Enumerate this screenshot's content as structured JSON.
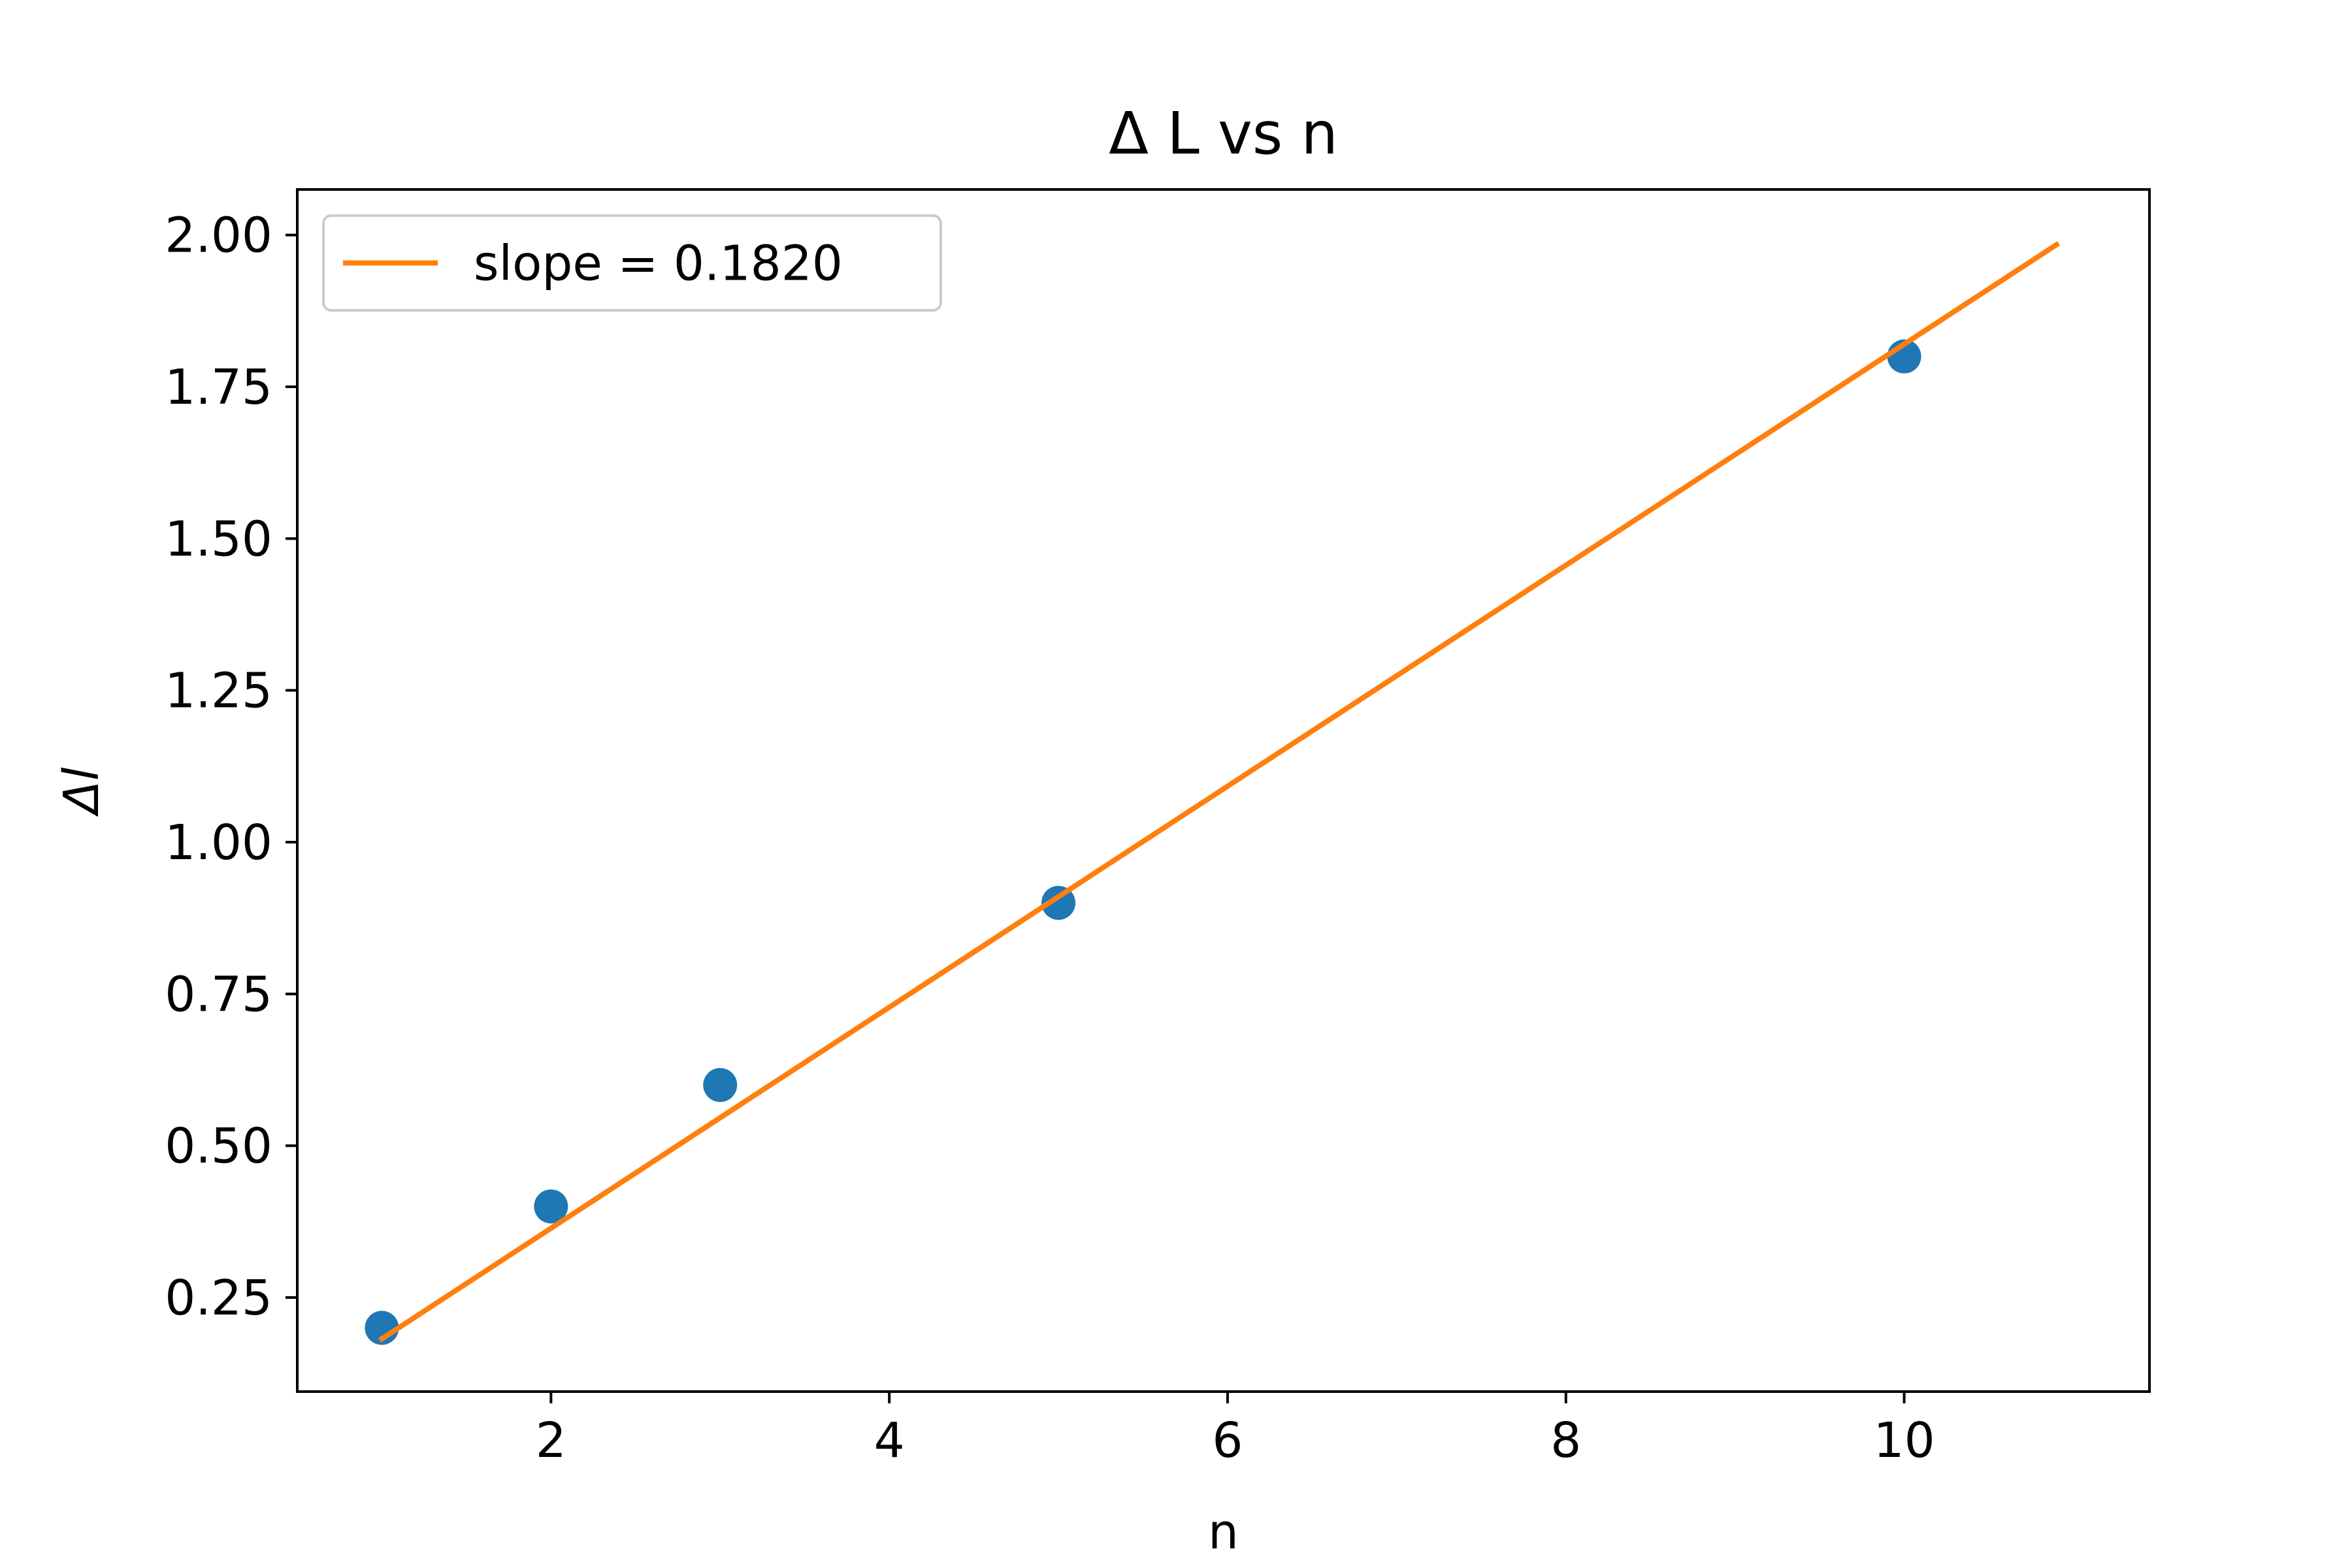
{
  "chart_data": {
    "type": "scatter",
    "title": "Δ L vs n",
    "xlabel": "n",
    "ylabel": "Δl",
    "xlim": [
      0.5,
      11.45
    ],
    "ylim": [
      0.095,
      2.075
    ],
    "x_ticks": [
      2,
      4,
      6,
      8,
      10
    ],
    "y_ticks": [
      0.25,
      0.5,
      0.75,
      1.0,
      1.25,
      1.5,
      1.75,
      2.0
    ],
    "x_tick_labels": [
      "2",
      "4",
      "6",
      "8",
      "10"
    ],
    "y_tick_labels": [
      "0.25",
      "0.50",
      "0.75",
      "1.00",
      "1.25",
      "1.50",
      "1.75",
      "2.00"
    ],
    "grid": false,
    "legend_position": "top-left",
    "series": [
      {
        "kind": "scatter",
        "color": "#1f77b4",
        "x": [
          1,
          2,
          3,
          5,
          10
        ],
        "y": [
          0.2,
          0.4,
          0.6,
          0.9,
          1.8
        ]
      },
      {
        "kind": "line",
        "name": "slope = 0.1820",
        "color": "#ff7f0e",
        "x": [
          1,
          10.9
        ],
        "y": [
          0.182,
          1.984
        ]
      }
    ]
  }
}
